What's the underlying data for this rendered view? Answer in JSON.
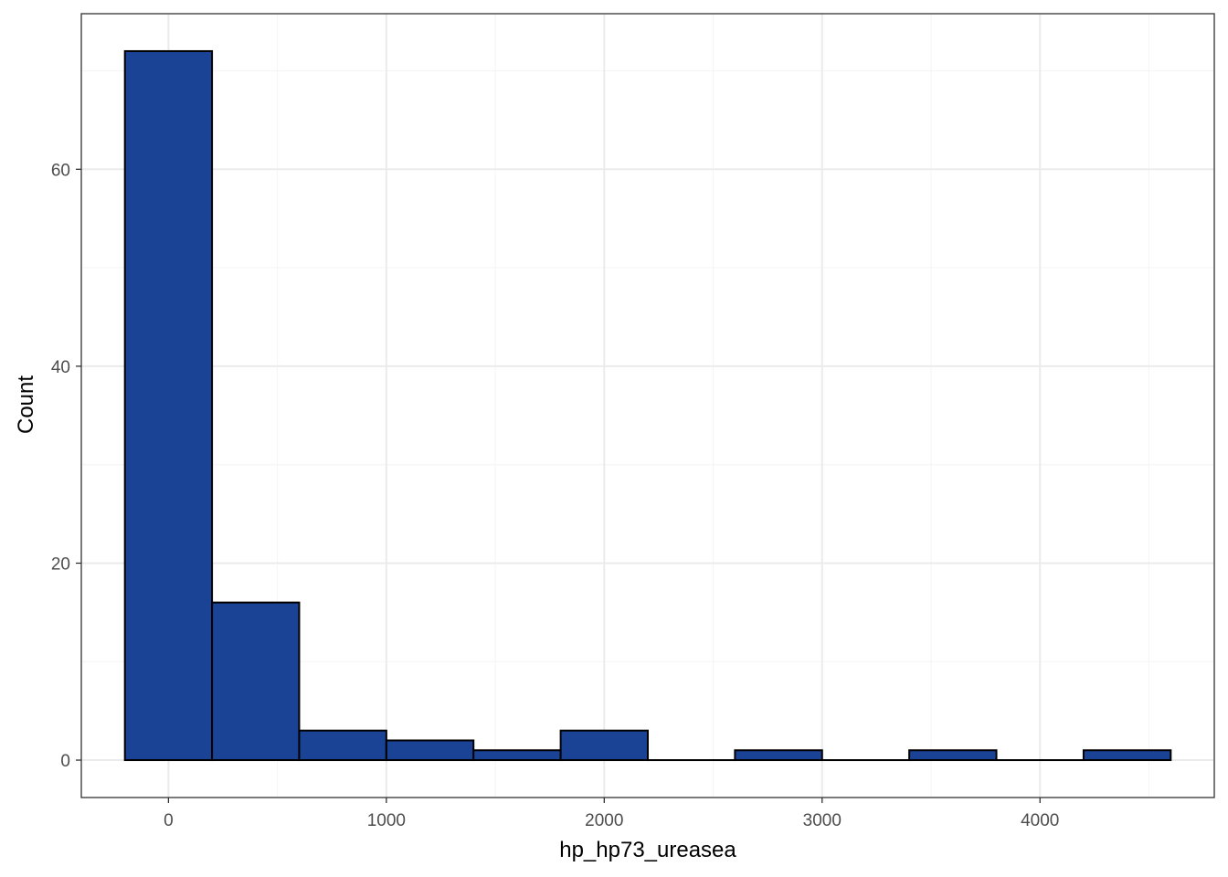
{
  "chart_data": {
    "type": "bar",
    "subtype": "histogram",
    "xlabel": "hp_hp73_ureasea",
    "ylabel": "Count",
    "xlim": [
      -400,
      4800
    ],
    "ylim": [
      -3.8,
      75.8
    ],
    "x_ticks": [
      0,
      1000,
      2000,
      3000,
      4000
    ],
    "x_tick_labels": [
      "0",
      "1000",
      "2000",
      "3000",
      "4000"
    ],
    "y_ticks": [
      0,
      20,
      40,
      60
    ],
    "y_tick_labels": [
      "0",
      "20",
      "40",
      "60"
    ],
    "grid": true,
    "bin_width": 400,
    "bins": [
      {
        "x0": -200,
        "x1": 200,
        "count": 72
      },
      {
        "x0": 200,
        "x1": 600,
        "count": 16
      },
      {
        "x0": 600,
        "x1": 1000,
        "count": 3
      },
      {
        "x0": 1000,
        "x1": 1400,
        "count": 2
      },
      {
        "x0": 1400,
        "x1": 1800,
        "count": 1
      },
      {
        "x0": 1800,
        "x1": 2200,
        "count": 3
      },
      {
        "x0": 2200,
        "x1": 2600,
        "count": 0
      },
      {
        "x0": 2600,
        "x1": 3000,
        "count": 1
      },
      {
        "x0": 3000,
        "x1": 3400,
        "count": 0
      },
      {
        "x0": 3400,
        "x1": 3800,
        "count": 1
      },
      {
        "x0": 3800,
        "x1": 4200,
        "count": 0
      },
      {
        "x0": 4200,
        "x1": 4600,
        "count": 1
      }
    ],
    "colors": {
      "bar_fill": "#1a4396",
      "bar_stroke": "#000000",
      "grid_major": "#ebebeb",
      "grid_minor": "#f5f5f5",
      "panel_border": "#333333"
    }
  }
}
